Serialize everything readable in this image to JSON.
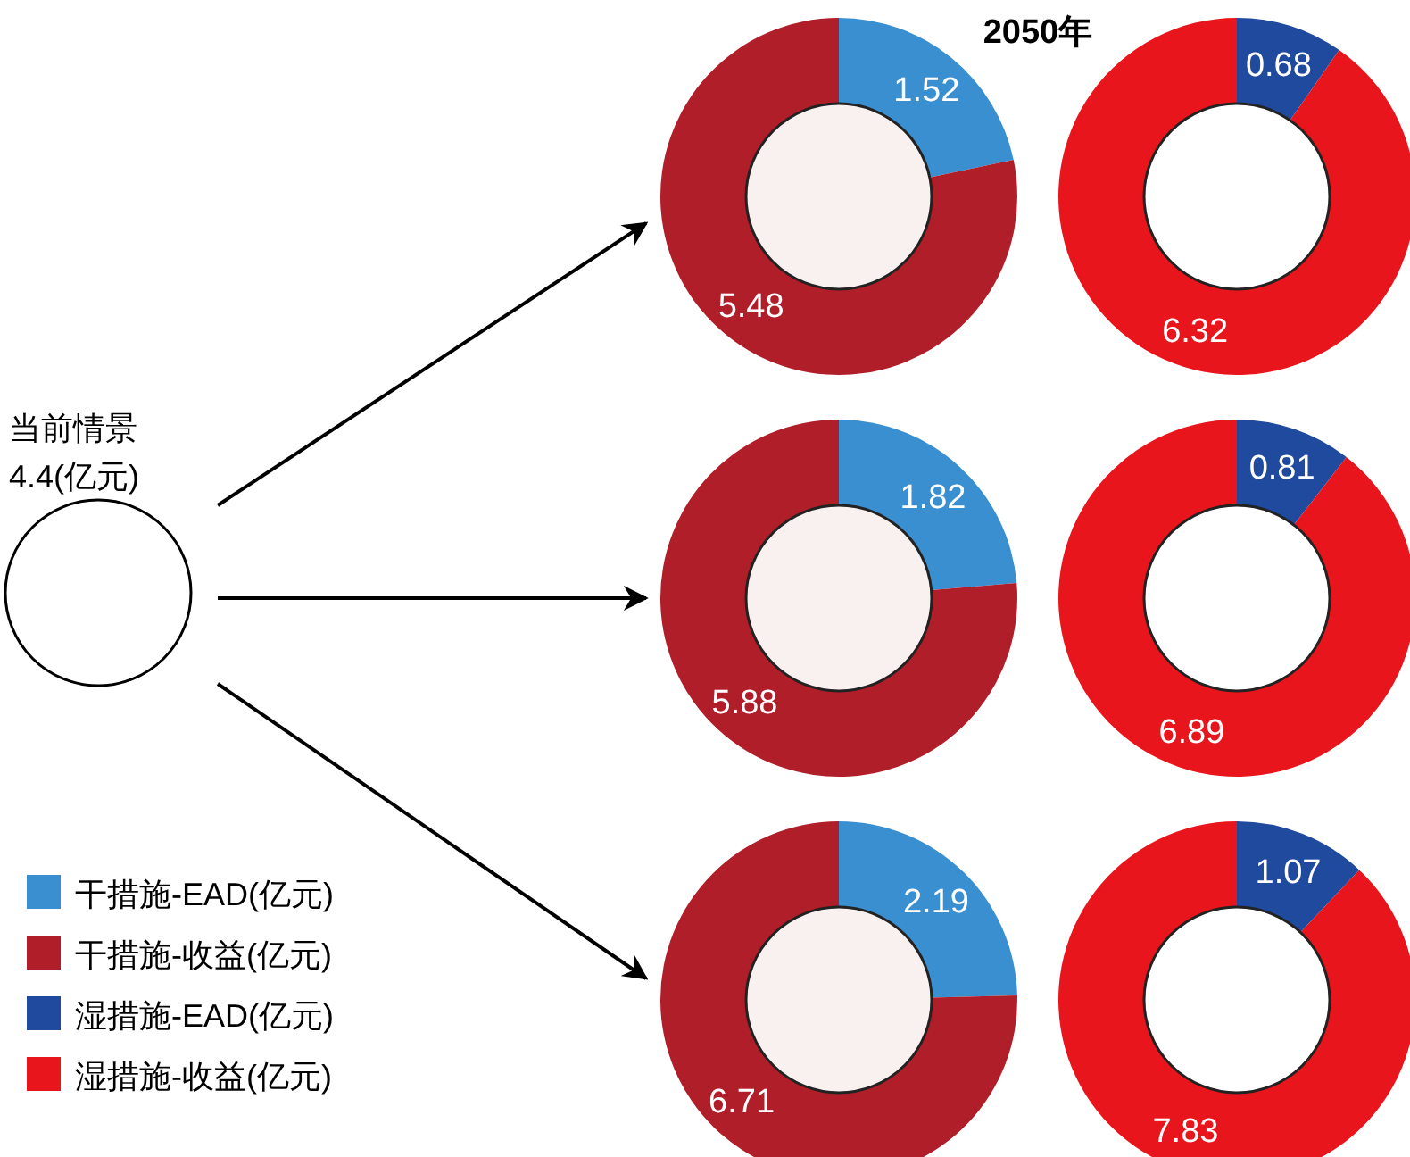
{
  "chart_data": [
    {
      "type": "other",
      "title": "2050年",
      "annotations": [
        "当前情景",
        "4.4(亿元)"
      ]
    },
    {
      "type": "donut",
      "categories": [
        "干措施-EAD(亿元)",
        "干措施-收益(亿元)"
      ],
      "values": [
        1.52,
        5.48
      ],
      "colors": [
        "#3a8fd0",
        "#b01e2a"
      ],
      "data_labels": true,
      "legend": "bottom left"
    },
    {
      "type": "donut",
      "categories": [
        "湿措施-EAD(亿元)",
        "湿措施-收益(亿元)"
      ],
      "values": [
        0.68,
        6.32
      ],
      "colors": [
        "#1f4a9e",
        "#e8161c"
      ],
      "data_labels": true,
      "legend": "bottom left"
    },
    {
      "type": "donut",
      "categories": [
        null,
        null
      ],
      "values": [
        1.82,
        5.88
      ],
      "colors": [
        "#3a8fd0",
        "#b01e2a"
      ],
      "data_labels": true
    },
    {
      "type": "donut",
      "categories": [
        null,
        null
      ],
      "values": [
        0.81,
        6.89
      ],
      "colors": [
        "#1f4a9e",
        "#e8161c"
      ],
      "data_labels": true
    },
    {
      "type": "donut",
      "categories": [
        null,
        null
      ],
      "values": [
        2.19,
        6.71
      ],
      "colors": [
        "#3a8fd0",
        "#b01e2a"
      ],
      "data_labels": true
    },
    {
      "type": "donut",
      "categories": [
        null,
        null
      ],
      "values": [
        1.07,
        7.83
      ],
      "colors": [
        "#1f4a9e",
        "#e8161c"
      ],
      "data_labels": true
    }
  ]
}
